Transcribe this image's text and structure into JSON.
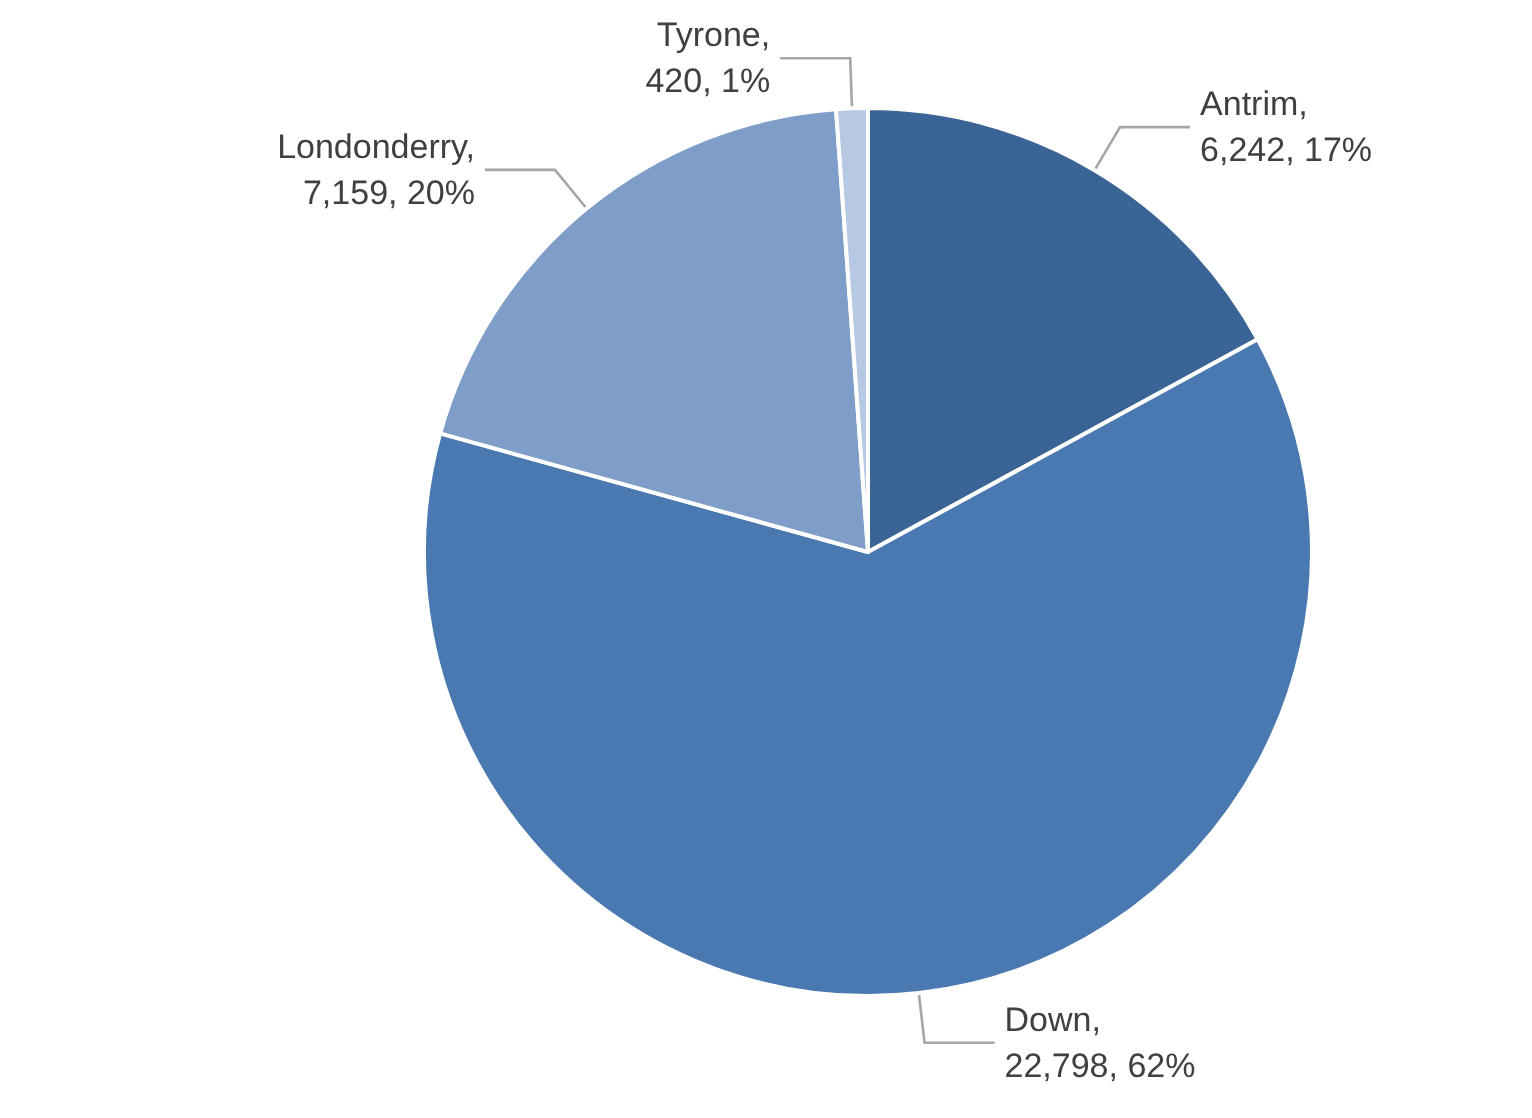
{
  "chart_data": {
    "type": "pie",
    "categories": [
      "Antrim",
      "Down",
      "Londonderry",
      "Tyrone"
    ],
    "values": [
      6242,
      22798,
      7159,
      420
    ],
    "value_labels": [
      ",\n6,242, 17%",
      ",\n22,798, 62%",
      ",\n7,159, 20%",
      ",\n420, 1%"
    ],
    "colors": [
      "#3b6496",
      "#4a78b0",
      "#7f9dc9",
      "#b7c8e2"
    ],
    "legend": false
  }
}
